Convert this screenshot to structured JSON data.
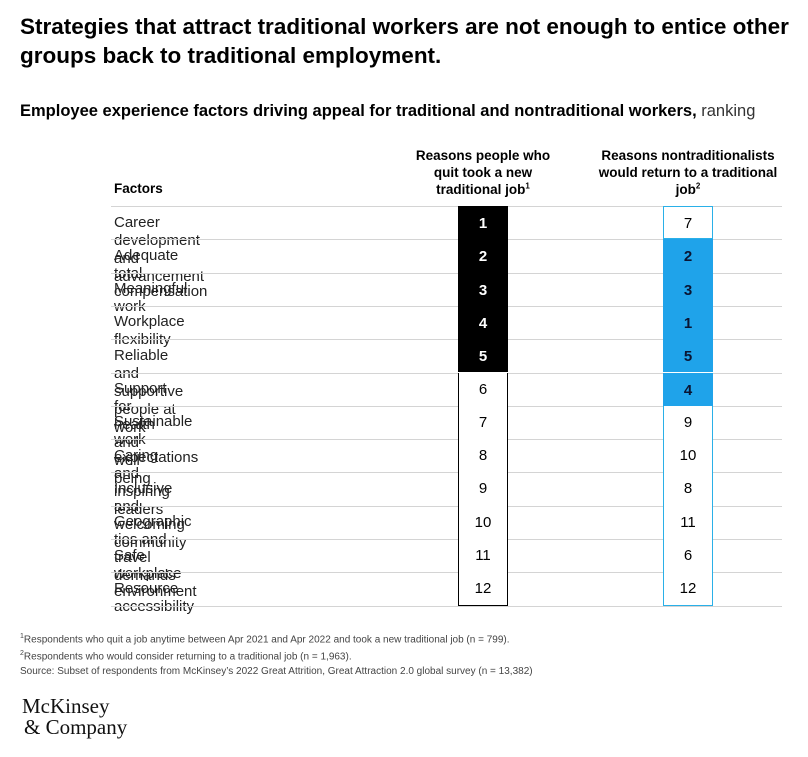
{
  "header": {
    "title": "Strategies that attract traditional workers are not enough to entice other groups back to traditional employment.",
    "subtitle_lead": "Employee experience factors driving appeal for traditional and nontraditional workers,",
    "subtitle_unit": " ranking"
  },
  "chart_data": {
    "type": "table",
    "columns": [
      {
        "label": "Factors"
      },
      {
        "label": "Reasons people who quit took a new traditional job",
        "footnote": "1"
      },
      {
        "label": "Reasons nontraditionalists would return to a traditional job",
        "footnote": "2"
      }
    ],
    "rows": [
      {
        "factor": "Career development and advancement",
        "traditional": 1,
        "nontraditional": 7
      },
      {
        "factor": "Adequate total compensation",
        "traditional": 2,
        "nontraditional": 2
      },
      {
        "factor": "Meaningful work",
        "traditional": 3,
        "nontraditional": 3
      },
      {
        "factor": "Workplace flexibility",
        "traditional": 4,
        "nontraditional": 1
      },
      {
        "factor": "Reliable and supportive people at work",
        "traditional": 5,
        "nontraditional": 5
      },
      {
        "factor": "Support for health and well-being",
        "traditional": 6,
        "nontraditional": 4
      },
      {
        "factor": "Sustainable work expectations",
        "traditional": 7,
        "nontraditional": 9
      },
      {
        "factor": "Caring and inspiring leaders",
        "traditional": 8,
        "nontraditional": 10
      },
      {
        "factor": "Inclusive and welcoming community",
        "traditional": 9,
        "nontraditional": 8
      },
      {
        "factor": "Geographic ties and travel demands",
        "traditional": 10,
        "nontraditional": 11
      },
      {
        "factor": "Safe workplace environment",
        "traditional": 11,
        "nontraditional": 6
      },
      {
        "factor": "Resource accessibility",
        "traditional": 12,
        "nontraditional": 12
      }
    ],
    "highlight_top_n": 5,
    "colors": {
      "traditional_highlight": "#000000",
      "nontraditional_highlight": "#1fa3ea",
      "nontraditional_border": "#2ab0e8"
    }
  },
  "footnotes": {
    "note1_marker": "1",
    "note1": "Respondents who quit a job anytime between Apr 2021 and Apr 2022 and took a new traditional job (n = 799).",
    "note2_marker": "2",
    "note2": "Respondents who would consider returning to a traditional job (n = 1,963).",
    "source": " Source: Subset of respondents from McKinsey’s 2022 Great Attrition, Great Attraction 2.0 global survey (n = 13,382)"
  },
  "logo": {
    "line1": "McKinsey",
    "line2": "& Company"
  }
}
